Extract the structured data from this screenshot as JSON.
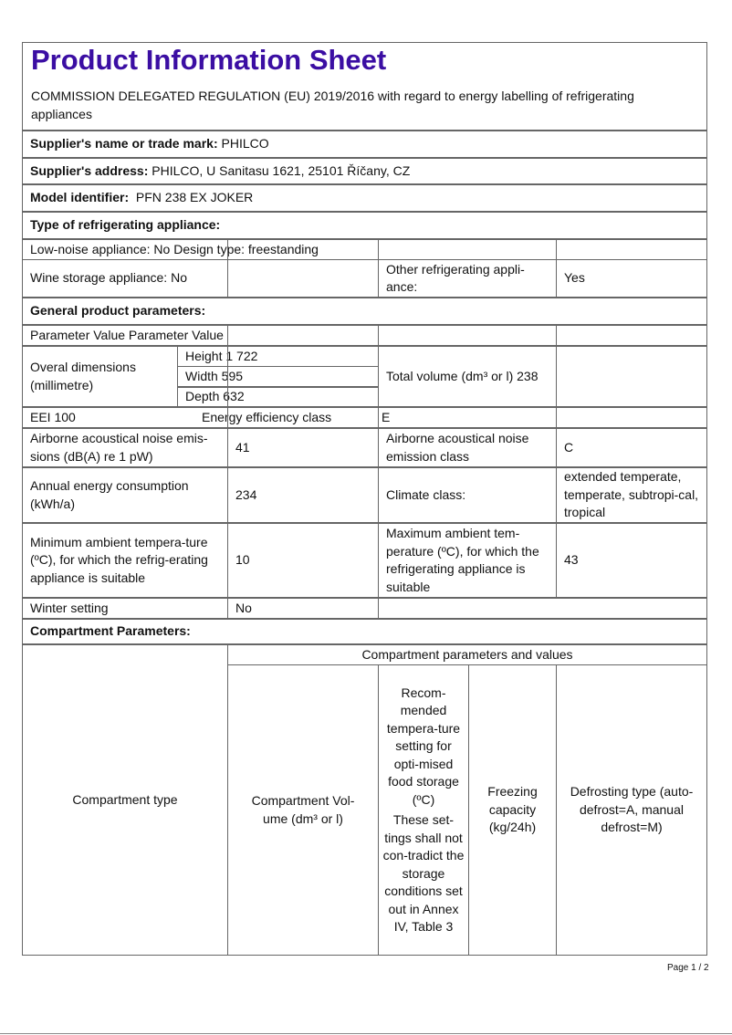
{
  "title": "Product Information Sheet",
  "subtitle": "COMMISSION DELEGATED REGULATION (EU) 2019/2016 with regard to energy labelling of refrigerating appliances",
  "supplier_name": {
    "label": "Supplier's name or trade mark:",
    "value": "PHILCO"
  },
  "supplier_address": {
    "label": "Supplier's address:",
    "value": "PHILCO, U Sanitasu 1621, 25101 Říčany, CZ"
  },
  "model": {
    "label": "Model identifier:",
    "value": "PFN 238 EX JOKER"
  },
  "type_heading": "Type of refrigerating appliance:",
  "low_noise": "Low-noise appliance: No Design type: freestanding",
  "wine": "Wine storage appliance: No",
  "other_label": "Other refrigerating appli-ance:",
  "other_value": "Yes",
  "general_heading": "General product parameters:",
  "param_header": "Parameter Value Parameter Value",
  "dimensions": {
    "label": "Overal dimensions (millimetre)",
    "height": "Height 1 722",
    "width": "Width 595",
    "depth": "Depth 632"
  },
  "total_volume": "Total volume (dm³ or l) 238",
  "eei": "EEI 100",
  "energy_class_label": "Energy efficiency class",
  "energy_class": "E",
  "noise": {
    "label": "Airborne acoustical noise emis-sions (dB(A) re 1 pW)",
    "value": "41",
    "class_label": "Airborne acoustical noise emission class",
    "class_value": "C"
  },
  "annual": {
    "label": "Annual energy consumption (kWh/a)",
    "value": "234",
    "climate_label": "Climate class:",
    "climate_value": "extended temperate, temperate, subtropi-cal, tropical"
  },
  "min_temp": {
    "label": "Minimum ambient tempera-ture (ºC), for which the refrig-erating appliance is suitable",
    "value": "10",
    "max_label": "Maximum ambient tem-perature (ºC), for which the refrigerating appliance is suitable",
    "max_value": "43"
  },
  "winter": {
    "label": "Winter setting",
    "value": "No"
  },
  "compartment_heading": "Compartment Parameters:",
  "compartment": {
    "type": "Compartment type",
    "params_values": "Compartment parameters and values",
    "volume": "Compartment Vol-ume (dm³ or l)",
    "recommended": "Recom-mended tempera-ture setting for opti-mised food storage (ºC)",
    "note": "These set-tings shall not con-tradict the storage conditions set out in Annex IV, Table 3",
    "freezing": "Freezing capacity (kg/24h)",
    "defrost": "Defrosting type (auto-defrost=A, manual defrost=M)"
  },
  "page": "Page 1 / 2"
}
